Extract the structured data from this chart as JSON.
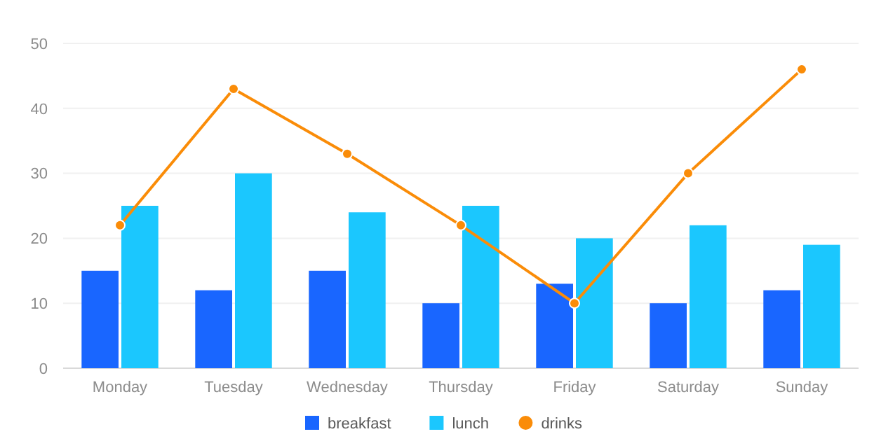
{
  "chart_data": {
    "type": "bar",
    "categories": [
      "Monday",
      "Tuesday",
      "Wednesday",
      "Thursday",
      "Friday",
      "Saturday",
      "Sunday"
    ],
    "series": [
      {
        "name": "breakfast",
        "color": "#1966ff",
        "values": [
          15,
          12,
          15,
          10,
          13,
          10,
          12
        ]
      },
      {
        "name": "lunch",
        "color": "#1bc7fe",
        "values": [
          25,
          30,
          24,
          25,
          20,
          22,
          19
        ]
      },
      {
        "name": "drinks",
        "type": "line",
        "color": "#fa8c08",
        "values": [
          22,
          43,
          33,
          22,
          10,
          30,
          46
        ]
      }
    ],
    "ylim": [
      0,
      50
    ],
    "yticks": [
      0,
      10,
      20,
      30,
      40,
      50
    ],
    "grid": "y",
    "legend": "bottom",
    "marker": "circle"
  }
}
